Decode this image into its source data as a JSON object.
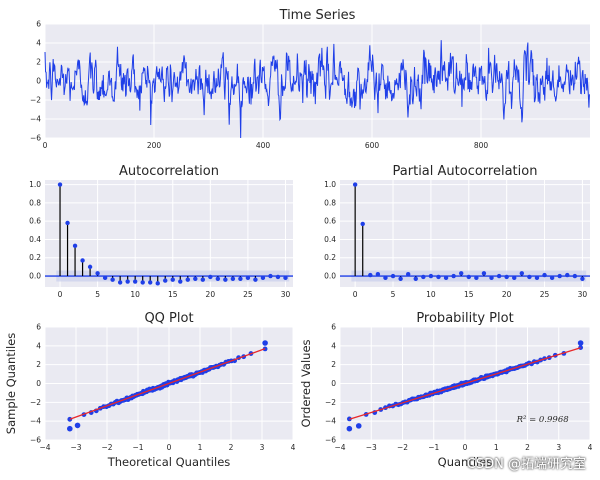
{
  "colors": {
    "panel_bg": "#EAEAF2",
    "grid": "#FFFFFF",
    "series": "#1F3FE8",
    "fit_line": "#E8282A",
    "stem": "#000000",
    "conf_band": "#C9CEEC"
  },
  "chart_data": [
    {
      "id": "timeseries",
      "type": "line",
      "title": "Time Series",
      "xlabel": "",
      "ylabel": "",
      "xlim": [
        0,
        1000
      ],
      "ylim": [
        -6,
        6
      ],
      "xticks": [
        0,
        200,
        400,
        600,
        800
      ],
      "yticks": [
        -6,
        -4,
        -2,
        0,
        2,
        4,
        6
      ],
      "n_points": 1000,
      "approx_stats": {
        "mean": 0,
        "std": 1.35,
        "max": 4.3,
        "min": -4.6
      },
      "notable_points": [
        {
          "x": 133,
          "y": 3.6
        },
        {
          "x": 338,
          "y": -4.6
        },
        {
          "x": 530,
          "y": 3.9
        },
        {
          "x": 727,
          "y": 4.3
        },
        {
          "x": 998,
          "y": -2.8
        }
      ]
    },
    {
      "id": "acf",
      "type": "stem",
      "title": "Autocorrelation",
      "xlim": [
        -2,
        31
      ],
      "ylim": [
        -0.12,
        1.05
      ],
      "xticks": [
        0,
        5,
        10,
        15,
        20,
        25,
        30
      ],
      "yticks": [
        0.0,
        0.2,
        0.4,
        0.6,
        0.8,
        1.0
      ],
      "tick_labels_y": [
        "0.0",
        "0.2",
        "0.4",
        "0.6",
        "0.8",
        "1.0"
      ],
      "lags": [
        0,
        1,
        2,
        3,
        4,
        5,
        6,
        7,
        8,
        9,
        10,
        11,
        12,
        13,
        14,
        15,
        16,
        17,
        18,
        19,
        20,
        21,
        22,
        23,
        24,
        25,
        26,
        27,
        28,
        29,
        30
      ],
      "values": [
        1.0,
        0.58,
        0.33,
        0.17,
        0.1,
        0.03,
        -0.02,
        -0.04,
        -0.07,
        -0.06,
        -0.06,
        -0.07,
        -0.07,
        -0.08,
        -0.05,
        -0.04,
        -0.06,
        -0.04,
        -0.03,
        -0.04,
        -0.01,
        -0.03,
        -0.04,
        -0.03,
        -0.03,
        -0.02,
        -0.04,
        -0.02,
        0.0,
        -0.01,
        -0.02
      ],
      "conf_band": 0.06
    },
    {
      "id": "pacf",
      "type": "stem",
      "title": "Partial Autocorrelation",
      "xlim": [
        -2,
        31
      ],
      "ylim": [
        -0.12,
        1.05
      ],
      "xticks": [
        0,
        5,
        10,
        15,
        20,
        25,
        30
      ],
      "yticks": [
        0.0,
        0.2,
        0.4,
        0.6,
        0.8,
        1.0
      ],
      "tick_labels_y": [
        "0.0",
        "0.2",
        "0.4",
        "0.6",
        "0.8",
        "1.0"
      ],
      "lags": [
        0,
        1,
        2,
        3,
        4,
        5,
        6,
        7,
        8,
        9,
        10,
        11,
        12,
        13,
        14,
        15,
        16,
        17,
        18,
        19,
        20,
        21,
        22,
        23,
        24,
        25,
        26,
        27,
        28,
        29,
        30
      ],
      "values": [
        1.0,
        0.57,
        0.01,
        0.02,
        -0.02,
        0.0,
        -0.03,
        0.02,
        -0.03,
        -0.01,
        0.0,
        -0.01,
        -0.02,
        0.0,
        0.03,
        -0.01,
        -0.02,
        0.03,
        -0.02,
        0.0,
        -0.01,
        -0.02,
        0.03,
        -0.01,
        -0.02,
        0.01,
        -0.02,
        0.0,
        0.01,
        0.0,
        -0.03
      ],
      "conf_band": 0.06
    },
    {
      "id": "qq",
      "type": "scatter",
      "title": "QQ Plot",
      "xlabel": "Theoretical Quantiles",
      "ylabel": "Sample Quantiles",
      "xlim": [
        -4,
        4
      ],
      "ylim": [
        -6,
        6
      ],
      "xticks": [
        -4,
        -3,
        -2,
        -1,
        0,
        1,
        2,
        3,
        4
      ],
      "yticks": [
        -6,
        -4,
        -2,
        0,
        2,
        4,
        6
      ],
      "fit_line": {
        "x": [
          -3.2,
          3.1
        ],
        "y": [
          -3.8,
          3.7
        ]
      },
      "extremes": [
        {
          "x": -3.2,
          "y": -4.8
        },
        {
          "x": -2.95,
          "y": -4.45
        },
        {
          "x": 3.1,
          "y": 4.3
        }
      ],
      "slope": 1.19
    },
    {
      "id": "prob",
      "type": "scatter",
      "title": "Probability Plot",
      "xlabel": "Quantiles",
      "ylabel": "Ordered Values",
      "xlim": [
        -4,
        4
      ],
      "ylim": [
        -6,
        6
      ],
      "xticks": [
        -4,
        -3,
        -2,
        -1,
        0,
        1,
        2,
        3,
        4
      ],
      "yticks": [
        -6,
        -4,
        -2,
        0,
        2,
        4,
        6
      ],
      "fit_line": {
        "x": [
          -3.7,
          3.7
        ],
        "y": [
          -3.8,
          3.8
        ]
      },
      "extremes": [
        {
          "x": -3.7,
          "y": -4.8
        },
        {
          "x": -3.4,
          "y": -4.5
        },
        {
          "x": 3.7,
          "y": 4.3
        }
      ],
      "slope": 1.03,
      "annotation": "R² = 0.9968"
    }
  ],
  "watermark": "CSDN @拓端研究室"
}
